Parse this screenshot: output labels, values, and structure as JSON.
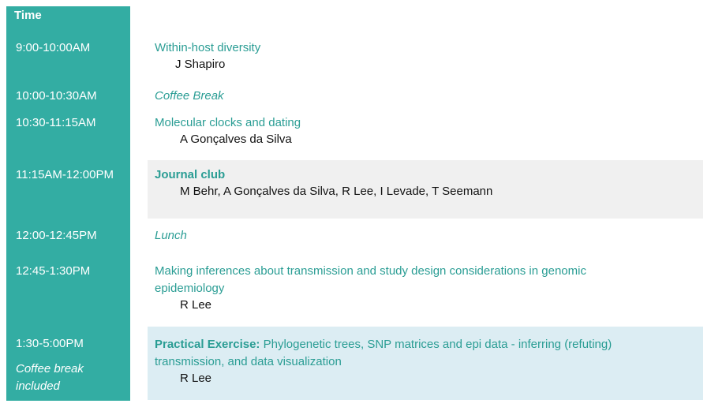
{
  "header": {
    "time_label": "Time"
  },
  "schedule": [
    {
      "time": "9:00-10:00AM",
      "title": "Within-host diversity",
      "speaker": "J Shapiro"
    },
    {
      "time": "10:00-10:30AM",
      "title": "Coffee Break"
    },
    {
      "time": "10:30-11:15AM",
      "title": "Molecular clocks and dating",
      "speaker": "A Gonçalves da Silva"
    },
    {
      "time": "11:15AM-12:00PM",
      "title": "Journal club",
      "speaker": "M Behr, A Gonçalves da Silva, R Lee, I Levade, T Seemann"
    },
    {
      "time": "12:00-12:45PM",
      "title": "Lunch"
    },
    {
      "time": "12:45-1:30PM",
      "title": "Making inferences about transmission and study design considerations in genomic epidemiology",
      "speaker": "R Lee"
    },
    {
      "time": "1:30-5:00PM",
      "time_note": "Coffee break included",
      "title_prefix": "Practical Exercise:",
      "title": " Phylogenetic trees, SNP matrices and epi data - inferring (refuting) transmission, and data visualization",
      "speaker": "R Lee"
    }
  ],
  "colors": {
    "teal_column": "#33ada3",
    "title_teal": "#2a9d94",
    "journal_club_bg": "#f0f0f0",
    "practical_bg": "#dcedf3"
  }
}
